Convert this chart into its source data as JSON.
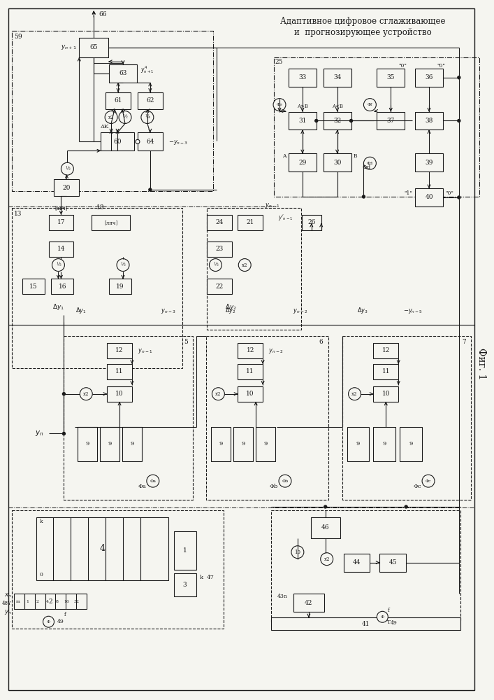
{
  "title_line1": "Адаптивное цифровое сглаживающее",
  "title_line2": " и  прогнозирующее устройство",
  "fig_label": "Фиг. 1",
  "bg": "#f5f5f0",
  "lc": "#1a1a1a",
  "bc": "#f5f5f0"
}
